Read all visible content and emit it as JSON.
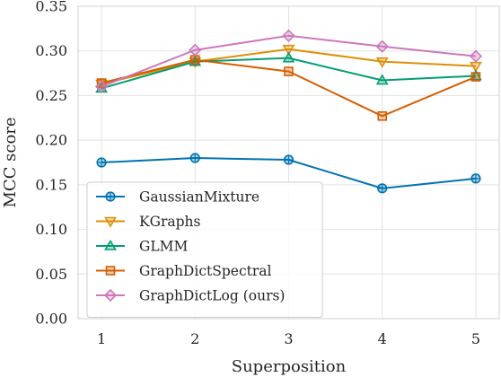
{
  "chart_data": {
    "type": "line",
    "xlabel": "Superposition",
    "ylabel": "MCC score",
    "x": [
      1,
      2,
      3,
      4,
      5
    ],
    "xlim": [
      0.75,
      5.25
    ],
    "ylim": [
      0.0,
      0.35
    ],
    "xticks": [
      "1",
      "2",
      "3",
      "4",
      "5"
    ],
    "yticks": [
      "0.00",
      "0.05",
      "0.10",
      "0.15",
      "0.20",
      "0.25",
      "0.30",
      "0.35"
    ],
    "grid": true,
    "legend_position": "lower-left",
    "series": [
      {
        "name": "GaussianMixture",
        "color": "#0173b2",
        "marker": "circle-cross",
        "values": [
          0.175,
          0.18,
          0.178,
          0.146,
          0.157
        ]
      },
      {
        "name": "KGraphs",
        "color": "#de8f05",
        "marker": "triangle-down",
        "values": [
          0.263,
          0.288,
          0.302,
          0.288,
          0.283
        ]
      },
      {
        "name": "GLMM",
        "color": "#029e73",
        "marker": "triangle-up",
        "values": [
          0.258,
          0.288,
          0.292,
          0.267,
          0.272
        ]
      },
      {
        "name": "GraphDictSpectral",
        "color": "#d55e00",
        "marker": "square",
        "values": [
          0.264,
          0.29,
          0.277,
          0.227,
          0.271
        ]
      },
      {
        "name": "GraphDictLog (ours)",
        "color": "#cc78bc",
        "marker": "diamond",
        "values": [
          0.26,
          0.301,
          0.317,
          0.305,
          0.294
        ]
      }
    ]
  }
}
